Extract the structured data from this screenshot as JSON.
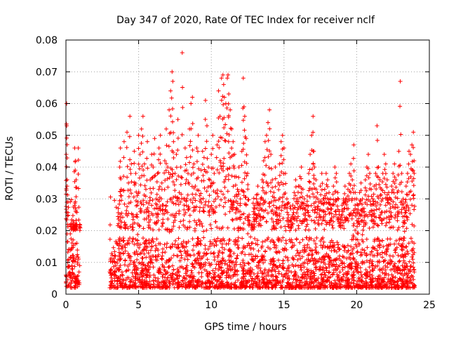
{
  "chart_data": {
    "type": "scatter",
    "title": "Day 347 of 2020, Rate Of TEC Index for receiver nclf",
    "xlabel": "GPS time / hours",
    "ylabel": "ROTI / TECUs",
    "xlim": [
      0,
      25
    ],
    "ylim": [
      0,
      0.08
    ],
    "xticks": [
      0,
      5,
      10,
      15,
      20,
      25
    ],
    "yticks": [
      0,
      0.01,
      0.02,
      0.03,
      0.04,
      0.05,
      0.06,
      0.07,
      0.08
    ],
    "xtick_labels": [
      "0",
      "5",
      "10",
      "15",
      "20",
      "25"
    ],
    "ytick_labels": [
      "0",
      "0.01",
      "0.02",
      "0.03",
      "0.04",
      "0.05",
      "0.06",
      "0.07",
      "0.08"
    ],
    "grid": true,
    "marker": "plus",
    "color": "#ff0000",
    "data_gap_hours": [
      1.0,
      3.0
    ],
    "series": [
      {
        "points": [
          [
            0.0,
            0.006
          ],
          [
            0.02,
            0.044
          ],
          [
            0.05,
            0.06
          ],
          [
            0.05,
            0.053
          ],
          [
            0.08,
            0.034
          ],
          [
            0.1,
            0.0045
          ],
          [
            0.12,
            0.01
          ],
          [
            0.15,
            0.029
          ],
          [
            0.2,
            0.014
          ],
          [
            0.25,
            0.006
          ],
          [
            0.3,
            0.019
          ],
          [
            0.35,
            0.022
          ],
          [
            0.4,
            0.008
          ],
          [
            0.45,
            0.005
          ],
          [
            0.5,
            0.023
          ],
          [
            0.55,
            0.021
          ],
          [
            0.6,
            0.046
          ],
          [
            0.62,
            0.022
          ],
          [
            0.65,
            0.042
          ],
          [
            0.7,
            0.036
          ],
          [
            0.72,
            0.005
          ],
          [
            0.75,
            0.022
          ],
          [
            0.8,
            0.01
          ],
          [
            0.85,
            0.046
          ],
          [
            0.9,
            0.007
          ],
          [
            0.95,
            0.022
          ],
          [
            3.1,
            0.004
          ],
          [
            3.2,
            0.01
          ],
          [
            3.3,
            0.006
          ],
          [
            3.4,
            0.012
          ],
          [
            3.5,
            0.008
          ],
          [
            3.6,
            0.027
          ],
          [
            3.7,
            0.04
          ],
          [
            3.75,
            0.046
          ],
          [
            3.8,
            0.033
          ],
          [
            3.9,
            0.015
          ],
          [
            4.0,
            0.048
          ],
          [
            4.1,
            0.022
          ],
          [
            4.2,
            0.051
          ],
          [
            4.3,
            0.035
          ],
          [
            4.4,
            0.056
          ],
          [
            4.5,
            0.041
          ],
          [
            4.6,
            0.025
          ],
          [
            4.7,
            0.045
          ],
          [
            4.8,
            0.038
          ],
          [
            4.9,
            0.031
          ],
          [
            5.0,
            0.05
          ],
          [
            5.1,
            0.044
          ],
          [
            5.2,
            0.052
          ],
          [
            5.3,
            0.056
          ],
          [
            5.4,
            0.041
          ],
          [
            5.5,
            0.033
          ],
          [
            5.6,
            0.048
          ],
          [
            5.7,
            0.026
          ],
          [
            5.8,
            0.036
          ],
          [
            5.9,
            0.044
          ],
          [
            6.0,
            0.04
          ],
          [
            6.1,
            0.049
          ],
          [
            6.2,
            0.03
          ],
          [
            6.3,
            0.038
          ],
          [
            6.4,
            0.046
          ],
          [
            6.5,
            0.05
          ],
          [
            6.6,
            0.035
          ],
          [
            6.7,
            0.028
          ],
          [
            6.8,
            0.042
          ],
          [
            6.9,
            0.052
          ],
          [
            7.0,
            0.04
          ],
          [
            7.1,
            0.058
          ],
          [
            7.2,
            0.064
          ],
          [
            7.3,
            0.07
          ],
          [
            7.35,
            0.067
          ],
          [
            7.4,
            0.048
          ],
          [
            7.5,
            0.038
          ],
          [
            7.6,
            0.044
          ],
          [
            7.7,
            0.055
          ],
          [
            7.8,
            0.032
          ],
          [
            7.9,
            0.04
          ],
          [
            8.0,
            0.076
          ],
          [
            8.1,
            0.03
          ],
          [
            8.2,
            0.046
          ],
          [
            8.3,
            0.043
          ],
          [
            8.4,
            0.038
          ],
          [
            8.5,
            0.052
          ],
          [
            8.6,
            0.06
          ],
          [
            8.7,
            0.062
          ],
          [
            8.8,
            0.041
          ],
          [
            8.9,
            0.034
          ],
          [
            9.0,
            0.046
          ],
          [
            9.1,
            0.05
          ],
          [
            9.2,
            0.031
          ],
          [
            9.3,
            0.039
          ],
          [
            9.4,
            0.045
          ],
          [
            9.5,
            0.043
          ],
          [
            9.6,
            0.061
          ],
          [
            9.7,
            0.053
          ],
          [
            9.8,
            0.04
          ],
          [
            9.9,
            0.036
          ],
          [
            10.0,
            0.044
          ],
          [
            10.1,
            0.05
          ],
          [
            10.2,
            0.038
          ],
          [
            10.3,
            0.032
          ],
          [
            10.4,
            0.047
          ],
          [
            10.5,
            0.064
          ],
          [
            10.6,
            0.056
          ],
          [
            10.7,
            0.068
          ],
          [
            10.8,
            0.069
          ],
          [
            10.85,
            0.066
          ],
          [
            10.9,
            0.062
          ],
          [
            11.0,
            0.06
          ],
          [
            11.1,
            0.068
          ],
          [
            11.15,
            0.069
          ],
          [
            11.2,
            0.063
          ],
          [
            11.3,
            0.058
          ],
          [
            11.4,
            0.052
          ],
          [
            11.5,
            0.048
          ],
          [
            11.6,
            0.044
          ],
          [
            11.7,
            0.037
          ],
          [
            11.8,
            0.033
          ],
          [
            11.9,
            0.04
          ],
          [
            12.0,
            0.03
          ],
          [
            12.1,
            0.045
          ],
          [
            12.2,
            0.068
          ],
          [
            12.25,
            0.059
          ],
          [
            12.3,
            0.056
          ],
          [
            12.4,
            0.049
          ],
          [
            12.5,
            0.038
          ],
          [
            12.6,
            0.025
          ],
          [
            12.7,
            0.018
          ],
          [
            12.8,
            0.022
          ],
          [
            12.9,
            0.026
          ],
          [
            13.0,
            0.028
          ],
          [
            13.1,
            0.03
          ],
          [
            13.2,
            0.034
          ],
          [
            13.3,
            0.028
          ],
          [
            13.4,
            0.03
          ],
          [
            13.5,
            0.036
          ],
          [
            13.6,
            0.042
          ],
          [
            13.7,
            0.048
          ],
          [
            13.8,
            0.05
          ],
          [
            13.9,
            0.054
          ],
          [
            14.0,
            0.058
          ],
          [
            14.1,
            0.044
          ],
          [
            14.2,
            0.036
          ],
          [
            14.3,
            0.032
          ],
          [
            14.4,
            0.04
          ],
          [
            14.5,
            0.027
          ],
          [
            14.6,
            0.035
          ],
          [
            14.7,
            0.041
          ],
          [
            14.8,
            0.048
          ],
          [
            14.9,
            0.05
          ],
          [
            15.0,
            0.046
          ],
          [
            15.1,
            0.038
          ],
          [
            15.2,
            0.03
          ],
          [
            15.3,
            0.025
          ],
          [
            15.4,
            0.02
          ],
          [
            15.5,
            0.024
          ],
          [
            15.6,
            0.028
          ],
          [
            15.7,
            0.032
          ],
          [
            15.8,
            0.036
          ],
          [
            15.9,
            0.03
          ],
          [
            16.0,
            0.034
          ],
          [
            16.1,
            0.037
          ],
          [
            16.2,
            0.04
          ],
          [
            16.3,
            0.033
          ],
          [
            16.4,
            0.03
          ],
          [
            16.5,
            0.028
          ],
          [
            16.6,
            0.031
          ],
          [
            16.7,
            0.038
          ],
          [
            16.8,
            0.044
          ],
          [
            16.9,
            0.05
          ],
          [
            17.0,
            0.056
          ],
          [
            17.05,
            0.045
          ],
          [
            17.1,
            0.04
          ],
          [
            17.2,
            0.036
          ],
          [
            17.3,
            0.032
          ],
          [
            17.4,
            0.029
          ],
          [
            17.5,
            0.034
          ],
          [
            17.6,
            0.038
          ],
          [
            17.7,
            0.03
          ],
          [
            17.8,
            0.033
          ],
          [
            17.9,
            0.038
          ],
          [
            18.0,
            0.036
          ],
          [
            18.1,
            0.032
          ],
          [
            18.2,
            0.03
          ],
          [
            18.3,
            0.028
          ],
          [
            18.4,
            0.034
          ],
          [
            18.5,
            0.04
          ],
          [
            18.6,
            0.038
          ],
          [
            18.7,
            0.032
          ],
          [
            18.8,
            0.026
          ],
          [
            18.9,
            0.024
          ],
          [
            19.0,
            0.028
          ],
          [
            19.1,
            0.03
          ],
          [
            19.2,
            0.034
          ],
          [
            19.3,
            0.03
          ],
          [
            19.4,
            0.033
          ],
          [
            19.5,
            0.038
          ],
          [
            19.6,
            0.041
          ],
          [
            19.7,
            0.036
          ],
          [
            19.8,
            0.047
          ],
          [
            19.9,
            0.032
          ],
          [
            20.0,
            0.03
          ],
          [
            20.1,
            0.028
          ],
          [
            20.2,
            0.032
          ],
          [
            20.3,
            0.035
          ],
          [
            20.4,
            0.03
          ],
          [
            20.5,
            0.027
          ],
          [
            20.6,
            0.036
          ],
          [
            20.7,
            0.04
          ],
          [
            20.8,
            0.044
          ],
          [
            20.9,
            0.038
          ],
          [
            21.0,
            0.033
          ],
          [
            21.1,
            0.03
          ],
          [
            21.2,
            0.034
          ],
          [
            21.3,
            0.038
          ],
          [
            21.4,
            0.053
          ],
          [
            21.5,
            0.04
          ],
          [
            21.6,
            0.036
          ],
          [
            21.7,
            0.033
          ],
          [
            21.8,
            0.038
          ],
          [
            21.9,
            0.044
          ],
          [
            22.0,
            0.041
          ],
          [
            22.1,
            0.036
          ],
          [
            22.2,
            0.032
          ],
          [
            22.3,
            0.03
          ],
          [
            22.4,
            0.034
          ],
          [
            22.5,
            0.038
          ],
          [
            22.6,
            0.041
          ],
          [
            22.7,
            0.036
          ],
          [
            22.8,
            0.032
          ],
          [
            22.9,
            0.045
          ],
          [
            23.0,
            0.067
          ],
          [
            23.1,
            0.038
          ],
          [
            23.2,
            0.03
          ],
          [
            23.3,
            0.027
          ],
          [
            23.4,
            0.034
          ],
          [
            23.5,
            0.038
          ],
          [
            23.6,
            0.045
          ],
          [
            23.7,
            0.044
          ],
          [
            23.8,
            0.047
          ],
          [
            23.9,
            0.051
          ],
          [
            23.95,
            0.042
          ]
        ]
      }
    ],
    "baseline_band": {
      "segments": [
        [
          0.0,
          0.95
        ],
        [
          3.0,
          24.0
        ]
      ],
      "typical_low": 0.002,
      "typical_high": 0.02,
      "points_per_hour": 110
    }
  }
}
